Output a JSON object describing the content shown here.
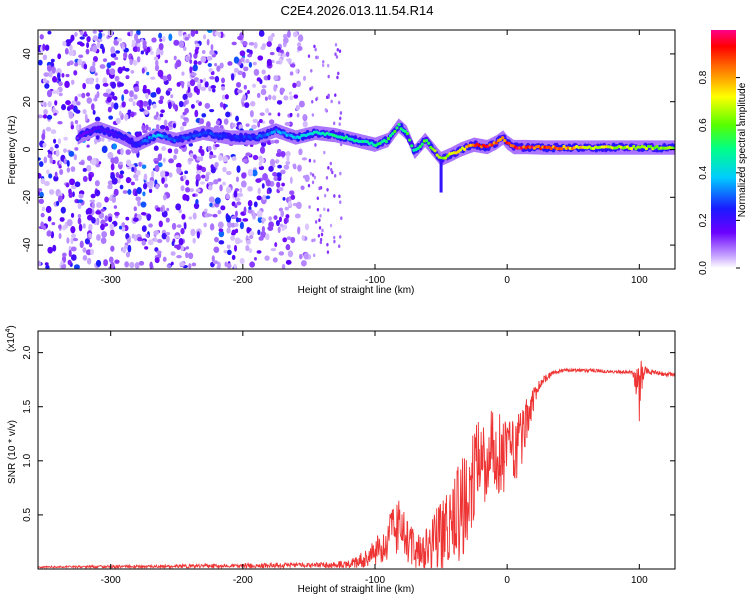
{
  "figure": {
    "title": "C2E4.2026.013.11.54.R14",
    "background": "#ffffff"
  },
  "chart_data": [
    {
      "type": "heatmap",
      "id": "spectrogram",
      "title": "",
      "xlabel": "Height of straight line (km)",
      "ylabel": "Frequency (Hz)",
      "xlim": [
        -355,
        127
      ],
      "ylim": [
        -50,
        50
      ],
      "xticks": [
        -300,
        -200,
        -100,
        0,
        100
      ],
      "xtick_labels": [
        "-300",
        "-200",
        "-100",
        "0",
        "100"
      ],
      "yticks": [
        -40,
        -20,
        0,
        20,
        40
      ],
      "ytick_labels": [
        "-40",
        "-20",
        "0",
        "20",
        "40"
      ],
      "grid": false,
      "colorscale": "rainbow (violet=0 to red/magenta=1)",
      "colorbar": {
        "label": "Normalized spectral amplitude",
        "range": [
          0,
          1
        ],
        "ticks": [
          0.0,
          0.2,
          0.4,
          0.6,
          0.8
        ],
        "tick_labels": [
          "0.0",
          "0.2",
          "0.4",
          "0.6",
          "0.8"
        ]
      },
      "ridge": {
        "description": "dominant frequency track vs height",
        "x": [
          -325,
          -310,
          -295,
          -280,
          -265,
          -250,
          -230,
          -210,
          -190,
          -175,
          -160,
          -145,
          -130,
          -115,
          -100,
          -90,
          -82,
          -76,
          -70,
          -62,
          -56,
          -50,
          -42,
          -35,
          -25,
          -15,
          -8,
          -3,
          0,
          5,
          15,
          30,
          60,
          90,
          127
        ],
        "y": [
          5,
          9,
          6,
          2,
          6,
          4,
          7,
          5,
          5,
          8,
          5,
          7,
          6,
          4,
          2,
          4,
          10,
          7,
          -1,
          4,
          0,
          -4,
          -2,
          0,
          2,
          1,
          3,
          5,
          3,
          1,
          1,
          0.8,
          0.8,
          0.8,
          0.8
        ],
        "amplitude": [
          0.15,
          0.2,
          0.2,
          0.25,
          0.4,
          0.3,
          0.3,
          0.25,
          0.3,
          0.35,
          0.4,
          0.45,
          0.5,
          0.5,
          0.5,
          0.55,
          0.6,
          0.55,
          0.55,
          0.6,
          0.65,
          0.65,
          0.7,
          0.75,
          0.85,
          0.95,
          0.9,
          0.85,
          0.95,
          0.95,
          0.95,
          0.9,
          0.75,
          0.7,
          0.65
        ]
      },
      "noise_region": {
        "x_range": [
          -355,
          -150
        ],
        "y_range": [
          -50,
          50
        ],
        "amplitude_range": [
          0.0,
          0.3
        ]
      },
      "anomaly": {
        "x": -50,
        "y_range": [
          -18,
          -4
        ]
      }
    },
    {
      "type": "line",
      "id": "snr",
      "title": "",
      "xlabel": "Height of straight line (km)",
      "ylabel": "SNR (10 * v/v)",
      "scale_note": "(x10",
      "scale_exponent": "4",
      "xlim": [
        -355,
        127
      ],
      "ylim": [
        0,
        2.2
      ],
      "xticks": [
        -300,
        -200,
        -100,
        0,
        100
      ],
      "xtick_labels": [
        "-300",
        "-200",
        "-100",
        "0",
        "100"
      ],
      "yticks": [
        0.5,
        1.0,
        1.5,
        2.0
      ],
      "ytick_labels": [
        "0.5",
        "1.0",
        "1.5",
        "2.0"
      ],
      "grid": false,
      "series": [
        {
          "name": "SNR",
          "color": "#ee3333",
          "x": [
            -355,
            -250,
            -150,
            -120,
            -105,
            -95,
            -88,
            -82,
            -75,
            -68,
            -60,
            -50,
            -40,
            -32,
            -25,
            -18,
            -10,
            -5,
            0,
            5,
            10,
            15,
            20,
            25,
            30,
            35,
            45,
            60,
            80,
            95,
            100,
            102,
            104,
            110,
            127
          ],
          "y": [
            0.02,
            0.03,
            0.04,
            0.05,
            0.12,
            0.25,
            0.35,
            0.42,
            0.3,
            0.18,
            0.25,
            0.35,
            0.55,
            0.75,
            0.95,
            1.1,
            1.2,
            1.15,
            1.1,
            1.15,
            1.25,
            1.45,
            1.6,
            1.72,
            1.78,
            1.82,
            1.84,
            1.84,
            1.83,
            1.82,
            1.7,
            1.9,
            1.85,
            1.82,
            1.8
          ],
          "noise": [
            0.01,
            0.02,
            0.03,
            0.05,
            0.12,
            0.2,
            0.3,
            0.35,
            0.25,
            0.2,
            0.3,
            0.45,
            0.55,
            0.6,
            0.6,
            0.55,
            0.5,
            0.45,
            0.4,
            0.4,
            0.35,
            0.25,
            0.15,
            0.06,
            0.04,
            0.03,
            0.02,
            0.02,
            0.02,
            0.02,
            0.35,
            0.3,
            0.05,
            0.03,
            0.02
          ]
        }
      ]
    }
  ]
}
